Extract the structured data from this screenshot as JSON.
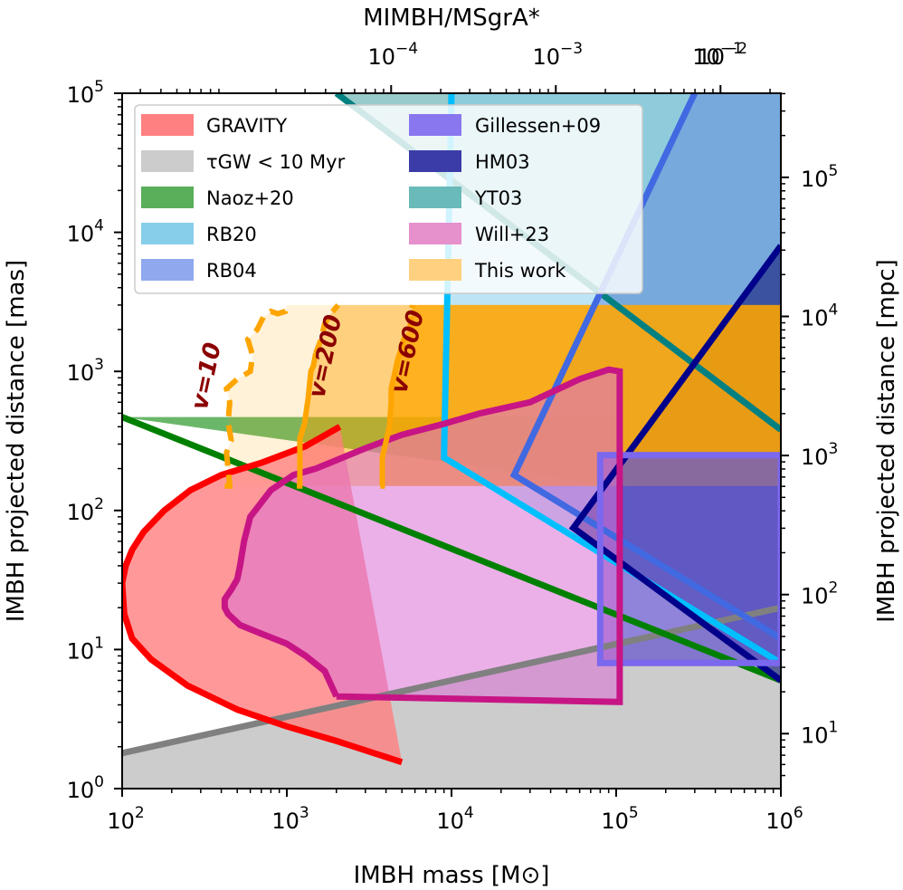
{
  "chart_data": {
    "type": "region-plot",
    "xlabel": "IMBH mass [M⊙]",
    "ylabel": "IMBH projected distance [mas]",
    "top_xlabel": "MIMBH/MSgrA*",
    "right_ylabel": "IMBH projected distance [mpc]",
    "xscale": "log",
    "yscale": "log",
    "xlim": [
      100,
      1000000
    ],
    "ylim": [
      1,
      100000
    ],
    "x_ticks": [
      {
        "value": 100,
        "base": "10",
        "exp": "2"
      },
      {
        "value": 1000,
        "base": "10",
        "exp": "3"
      },
      {
        "value": 10000,
        "base": "10",
        "exp": "4"
      },
      {
        "value": 100000,
        "base": "10",
        "exp": "5"
      },
      {
        "value": 1000000,
        "base": "10",
        "exp": "6"
      }
    ],
    "y_ticks": [
      {
        "value": 1,
        "base": "10",
        "exp": "0"
      },
      {
        "value": 10,
        "base": "10",
        "exp": "1"
      },
      {
        "value": 100,
        "base": "10",
        "exp": "2"
      },
      {
        "value": 1000,
        "base": "10",
        "exp": "3"
      },
      {
        "value": 10000,
        "base": "10",
        "exp": "4"
      },
      {
        "value": 100000,
        "base": "10",
        "exp": "5"
      }
    ],
    "top_ticks": [
      {
        "mass": 4300,
        "base": "10",
        "exp": "−4"
      },
      {
        "mass": 43000,
        "base": "10",
        "exp": "−3"
      },
      {
        "mass": 430000,
        "base": "10",
        "exp": "−2"
      },
      {
        "mass": 4300000,
        "base": "10",
        "exp": "−1"
      }
    ],
    "right_ticks": [
      {
        "mas": 2.484,
        "base": "10",
        "exp": "1"
      },
      {
        "mas": 24.84,
        "base": "10",
        "exp": "2"
      },
      {
        "mas": 248.4,
        "base": "10",
        "exp": "3"
      },
      {
        "mas": 2484,
        "base": "10",
        "exp": "4"
      },
      {
        "mas": 24840,
        "base": "10",
        "exp": "5"
      }
    ],
    "regions": {
      "tau_gw": {
        "name": "τGW < 10 Myr",
        "color": "#cccccc",
        "line": [
          [
            100,
            1.8
          ],
          [
            1000000,
            20
          ]
        ]
      },
      "naoz20": {
        "name": "Naoz+20",
        "color": "#5aaf5a",
        "line": [
          [
            100,
            470
          ],
          [
            1000000,
            6
          ]
        ]
      },
      "yt03": {
        "name": "YT03",
        "color": "#1a8c8c",
        "line": [
          [
            2000,
            100000
          ],
          [
            1000000,
            380
          ]
        ]
      },
      "rb20": {
        "name": "RB20",
        "color": "#87ceeb",
        "edge": "#00bfff",
        "poly": [
          [
            10000,
            100000
          ],
          [
            9000,
            240
          ],
          [
            1000000,
            8
          ]
        ],
        "vertex": [
          9000,
          240
        ]
      },
      "rb04": {
        "name": "RB04",
        "color": "#5b7fdc",
        "edge": "#4169e1",
        "vertex": [
          24000,
          180
        ],
        "upper_end": [
          300000,
          100000
        ],
        "lower_end": [
          1000000,
          12
        ]
      },
      "hm03": {
        "name": "HM03",
        "color": "#1a237e",
        "edge": "#00008b",
        "vertex": [
          55000,
          75
        ],
        "upper_end": [
          1000000,
          8000
        ],
        "lower_end": [
          1000000,
          6
        ]
      },
      "gillessen09": {
        "name": "Gillessen+09",
        "color": "#6a5acd",
        "edge": "#7b68ee",
        "box": [
          [
            80000,
            8
          ],
          [
            1000000,
            250
          ]
        ]
      },
      "gravity": {
        "name": "GRAVITY",
        "color": "#ff8080",
        "edge": "#ff0000",
        "curve": [
          [
            2100,
            400
          ],
          [
            1300,
            290
          ],
          [
            700,
            220
          ],
          [
            400,
            180
          ],
          [
            260,
            140
          ],
          [
            180,
            100
          ],
          [
            135,
            70
          ],
          [
            115,
            52
          ],
          [
            105,
            40
          ],
          [
            100,
            30
          ],
          [
            103,
            18
          ],
          [
            115,
            12
          ],
          [
            150,
            8.5
          ],
          [
            250,
            5.5
          ],
          [
            500,
            3.7
          ],
          [
            1000,
            2.8
          ],
          [
            2000,
            2.2
          ],
          [
            5000,
            1.55
          ]
        ]
      },
      "will23": {
        "name": "Will+23",
        "color": "#da70d6",
        "edge": "#c71585",
        "poly": [
          [
            2000,
            4.6
          ],
          [
            105000,
            4.2
          ],
          [
            105000,
            1000
          ],
          [
            90000,
            1030
          ],
          [
            60000,
            880
          ],
          [
            30000,
            600
          ],
          [
            15000,
            500
          ],
          [
            9000,
            420
          ],
          [
            5000,
            350
          ],
          [
            3000,
            280
          ],
          [
            2000,
            230
          ],
          [
            1500,
            200
          ],
          [
            1100,
            180
          ],
          [
            800,
            140
          ],
          [
            600,
            90
          ],
          [
            550,
            60
          ],
          [
            520,
            40
          ],
          [
            500,
            32
          ],
          [
            460,
            27
          ],
          [
            420,
            23
          ],
          [
            420,
            20
          ],
          [
            440,
            18
          ],
          [
            520,
            15
          ],
          [
            700,
            13
          ],
          [
            1000,
            11
          ],
          [
            1300,
            9
          ],
          [
            1700,
            7
          ],
          [
            2000,
            4.6
          ]
        ]
      },
      "this_work": {
        "name": "This work",
        "color": "#ffa500",
        "bands": [
          {
            "label": "v=10",
            "xmin": 420,
            "boundary": [
              [
                450,
                150
              ],
              [
                430,
                260
              ],
              [
                460,
                320
              ],
              [
                440,
                430
              ],
              [
                450,
                600
              ],
              [
                430,
                750
              ],
              [
                500,
                880
              ],
              [
                600,
                1000
              ],
              [
                620,
                1300
              ],
              [
                580,
                1700
              ],
              [
                660,
                2000
              ],
              [
                720,
                2450
              ],
              [
                800,
                2700
              ],
              [
                880,
                2600
              ],
              [
                980,
                2700
              ],
              [
                1000,
                3000
              ]
            ],
            "label_pos": [
              360,
              900
            ]
          },
          {
            "label": "v=200",
            "xmin": 1150,
            "boundary": [
              [
                1200,
                150
              ],
              [
                1200,
                330
              ],
              [
                1280,
                420
              ],
              [
                1350,
                650
              ],
              [
                1400,
                1000
              ],
              [
                1450,
                1100
              ],
              [
                1500,
                1350
              ],
              [
                1600,
                1650
              ],
              [
                1700,
                2200
              ],
              [
                1850,
                2600
              ],
              [
                2050,
                3000
              ]
            ],
            "label_pos": [
              1900,
              1250
            ]
          },
          {
            "label": "v=600",
            "xmin": 3700,
            "boundary": [
              [
                3800,
                150
              ],
              [
                3800,
                240
              ],
              [
                4200,
                400
              ],
              [
                4300,
                600
              ],
              [
                4300,
                750
              ],
              [
                4500,
                950
              ],
              [
                4700,
                1200
              ],
              [
                4900,
                1400
              ],
              [
                5200,
                1800
              ],
              [
                5600,
                2100
              ],
              [
                5700,
                2500
              ],
              [
                5800,
                3000
              ]
            ],
            "label_pos": [
              6000,
              1350
            ]
          }
        ],
        "ymin": 150,
        "ymax": 3000
      }
    },
    "legend": {
      "left": [
        {
          "label": "GRAVITY",
          "color": "#ff8080"
        },
        {
          "label": "τGW < 10 Myr",
          "color": "#cccccc"
        },
        {
          "label": "Naoz+20",
          "color": "#5aaf5a"
        },
        {
          "label": "RB20",
          "color": "#87ceeb"
        },
        {
          "label": "RB04",
          "color": "#8fa8ee"
        }
      ],
      "right": [
        {
          "label": "Gillessen+09",
          "color": "#8877ee"
        },
        {
          "label": "HM03",
          "color": "#3c3ca8"
        },
        {
          "label": "YT03",
          "color": "#6ababa"
        },
        {
          "label": "Will+23",
          "color": "#e690cc"
        },
        {
          "label": "This work",
          "color": "#ffd080"
        }
      ]
    }
  }
}
